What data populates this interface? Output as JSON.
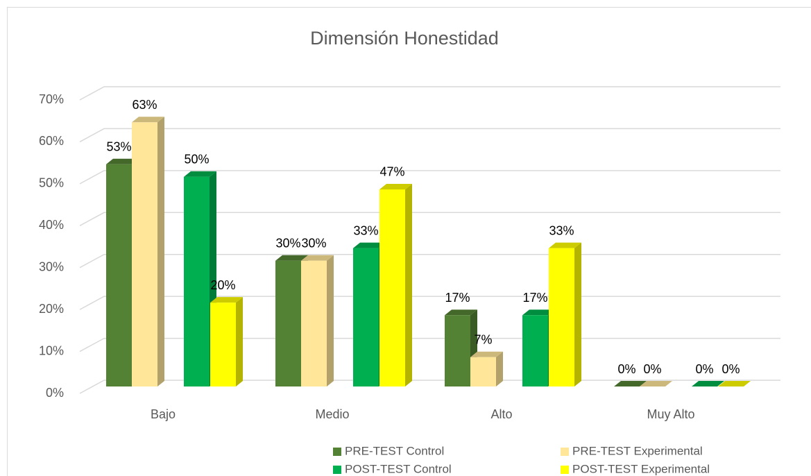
{
  "chart_data": {
    "type": "bar3d",
    "title": "Dimensión Honestidad",
    "categories": [
      "Bajo",
      "Medio",
      "Alto",
      "Muy Alto"
    ],
    "series": [
      {
        "name": "PRE-TEST Control",
        "color": "#548235",
        "values": [
          53,
          30,
          17,
          0
        ],
        "value_labels": [
          "53%",
          "30%",
          "17%",
          "0%"
        ]
      },
      {
        "name": "PRE-TEST Experimental",
        "color": "#ffe699",
        "values": [
          63,
          30,
          7,
          0
        ],
        "value_labels": [
          "63%",
          "30%",
          "7%",
          "0%"
        ]
      },
      {
        "name": "POST-TEST Control",
        "color": "#00b050",
        "values": [
          50,
          33,
          17,
          0
        ],
        "value_labels": [
          "50%",
          "33%",
          "17%",
          "0%"
        ]
      },
      {
        "name": "POST-TEST Experimental",
        "color": "#ffff00",
        "values": [
          20,
          47,
          33,
          0
        ],
        "value_labels": [
          "20%",
          "47%",
          "33%",
          "0%"
        ]
      }
    ],
    "ylim": [
      0,
      70
    ],
    "yticks": [
      {
        "value": 0,
        "label": "0%"
      },
      {
        "value": 10,
        "label": "10%"
      },
      {
        "value": 20,
        "label": "20%"
      },
      {
        "value": 30,
        "label": "30%"
      },
      {
        "value": 40,
        "label": "40%"
      },
      {
        "value": 50,
        "label": "50%"
      },
      {
        "value": 60,
        "label": "60%"
      },
      {
        "value": 70,
        "label": "70%"
      }
    ],
    "grid": true,
    "legend": "bottom"
  }
}
